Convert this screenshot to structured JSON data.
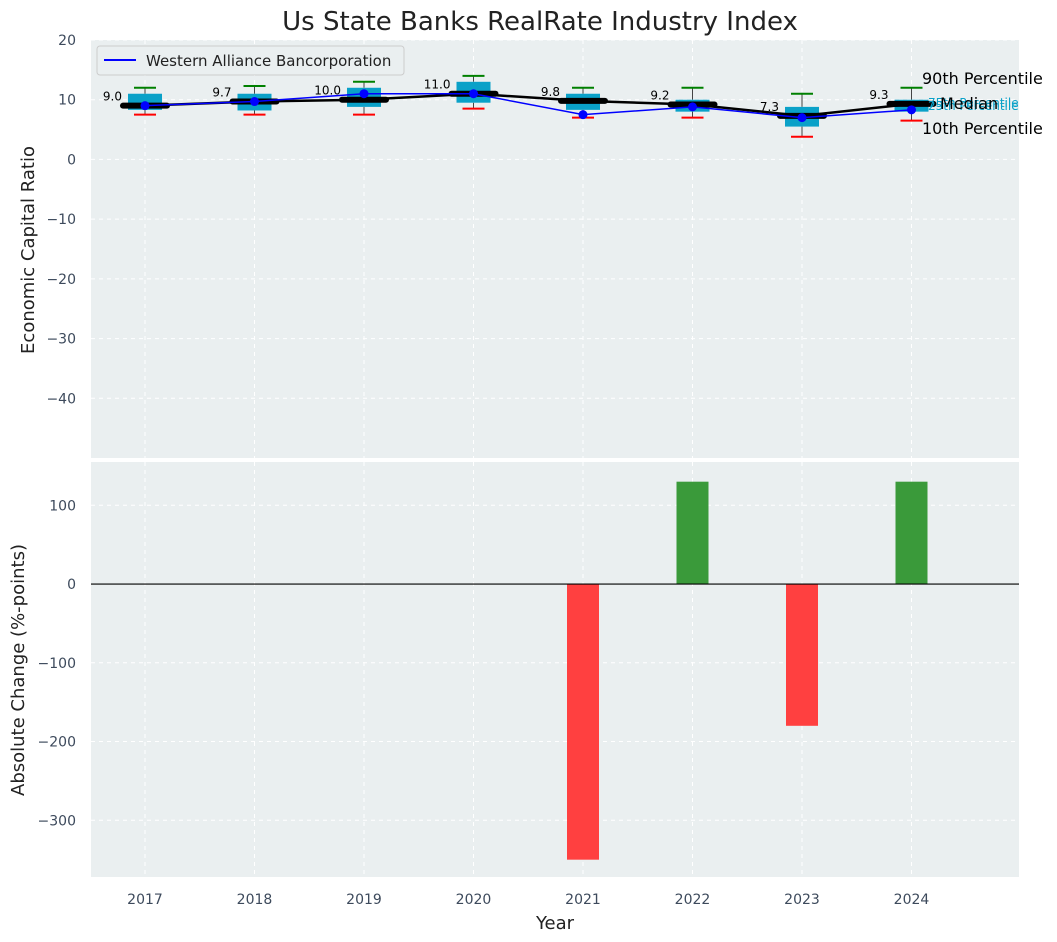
{
  "chart_data": {
    "type": "box+line+bar",
    "title": "Us State Banks RealRate Industry Index",
    "years": [
      "2017",
      "2018",
      "2019",
      "2020",
      "2021",
      "2022",
      "2023",
      "2024"
    ],
    "xlabel": "Year",
    "top": {
      "ylabel": "Economic Capital Ratio",
      "ylim": [
        -50,
        20
      ],
      "yticks": [
        "20",
        "10",
        "0",
        "−10",
        "−20",
        "−30",
        "−40"
      ],
      "p10": [
        7.5,
        7.5,
        7.5,
        8.5,
        7.0,
        7.0,
        3.8,
        6.5
      ],
      "q1": [
        8.3,
        8.2,
        8.8,
        9.5,
        8.3,
        8.0,
        5.5,
        8.0
      ],
      "q3": [
        11.0,
        11.0,
        12.0,
        13.0,
        11.0,
        10.0,
        8.8,
        10.0
      ],
      "p90": [
        12.0,
        12.3,
        13.0,
        14.0,
        12.0,
        12.0,
        11.0,
        12.0
      ],
      "median": [
        9.0,
        9.7,
        10.0,
        11.0,
        9.8,
        9.2,
        7.3,
        9.3
      ],
      "median_labels": [
        "9.0",
        "9.7",
        "10.0",
        "11.0",
        "9.8",
        "9.2",
        "7.3",
        "9.3"
      ],
      "company": [
        9.0,
        9.7,
        11.0,
        11.0,
        7.5,
        8.8,
        7.0,
        8.3
      ],
      "legend": "Western Alliance Bancorporation",
      "percentile_labels": {
        "p90": "90th Percentile",
        "p75": "75th Percentile",
        "median": "Median",
        "p25": "25th Percentile",
        "p10": "10th Percentile"
      }
    },
    "bottom": {
      "ylabel": "Absolute Change (%-points)",
      "ylim": [
        -372,
        155
      ],
      "yticks": [
        "100",
        "0",
        "−100",
        "−200",
        "−300"
      ],
      "values": [
        0,
        0,
        0,
        0,
        -350,
        130,
        -180,
        130
      ]
    },
    "colors": {
      "panel_bg": "#eaeff0",
      "box": "#0aa1c8",
      "median_line": "#000000",
      "company_line": "#0000ff",
      "whisker_high": "#008000",
      "whisker_low": "#ff0000",
      "bar_positive": "#3a9a3a",
      "bar_negative": "#ff4040"
    }
  }
}
